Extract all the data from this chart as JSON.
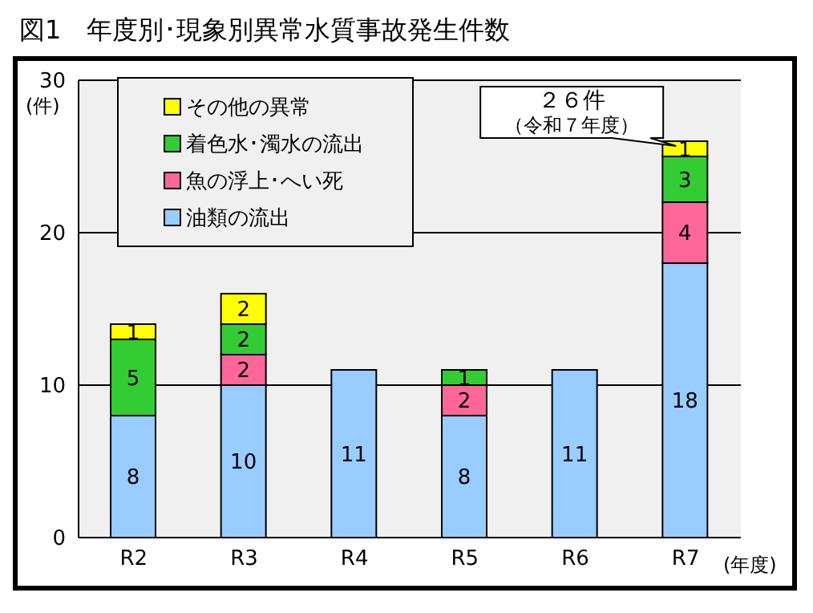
{
  "chart_data": {
    "type": "bar",
    "title": "図1　年度別･現象別異常水質事故発生件数",
    "ylabel": "(件)",
    "xlabel": "(年度)",
    "categories": [
      "R2",
      "R3",
      "R4",
      "R5",
      "R6",
      "R7"
    ],
    "stacked": true,
    "data_labels": true,
    "grid": "y",
    "legend": "top left",
    "ylim": [
      0,
      30
    ],
    "yticks": [
      0,
      10,
      20,
      30
    ],
    "annotations": [
      "２６件",
      "（令和７年度）"
    ],
    "series": [
      {
        "name": "油類の流出",
        "color": "#99ccff",
        "values": [
          8,
          10,
          11,
          8,
          11,
          18
        ]
      },
      {
        "name": "魚の浮上･へい死",
        "color": "#ff6699",
        "values": [
          null,
          2,
          null,
          2,
          null,
          4
        ]
      },
      {
        "name": "着色水･濁水の流出",
        "color": "#33cc33",
        "values": [
          5,
          2,
          null,
          1,
          null,
          3
        ]
      },
      {
        "name": "その他の異常",
        "color": "#ffff00",
        "values": [
          1,
          2,
          null,
          null,
          null,
          1
        ]
      }
    ]
  }
}
